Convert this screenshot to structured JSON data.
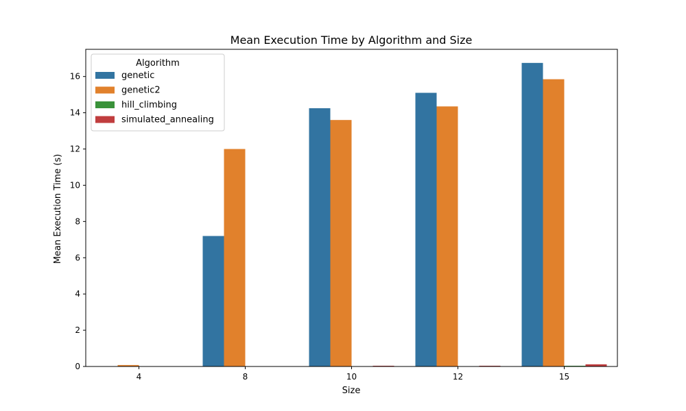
{
  "chart_data": {
    "type": "bar",
    "title": "Mean Execution Time by Algorithm and Size",
    "xlabel": "Size",
    "ylabel": "Mean Execution Time (s)",
    "categories": [
      "4",
      "8",
      "10",
      "12",
      "15"
    ],
    "ylim": [
      0,
      17.5
    ],
    "yticks": [
      0,
      2,
      4,
      6,
      8,
      10,
      12,
      14,
      16
    ],
    "grid": false,
    "legend": {
      "title": "Algorithm",
      "placement": "top-left"
    },
    "series": [
      {
        "name": "genetic",
        "color": "#3274a1",
        "values": [
          0.0,
          7.2,
          14.25,
          15.1,
          16.75
        ]
      },
      {
        "name": "genetic2",
        "color": "#e1812c",
        "values": [
          0.08,
          12.0,
          13.6,
          14.35,
          15.85
        ]
      },
      {
        "name": "hill_climbing",
        "color": "#3a923a",
        "values": [
          0.0,
          0.0,
          0.0,
          0.0,
          0.04
        ]
      },
      {
        "name": "simulated_annealing",
        "color": "#c03d3e",
        "values": [
          0.0,
          0.0,
          0.04,
          0.04,
          0.12
        ]
      }
    ]
  }
}
